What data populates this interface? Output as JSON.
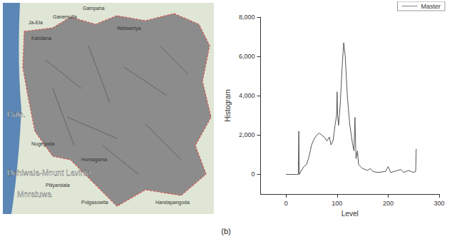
{
  "chart_data": {
    "type": "line",
    "legend": "top-right",
    "grid": false,
    "x_label": "Level",
    "y_label": "Histogram",
    "xlim": [
      -50,
      300
    ],
    "xticks": [
      0,
      100,
      200,
      300
    ],
    "ylim": [
      -1000,
      8000
    ],
    "yticks": [
      0,
      2000,
      4000,
      6000,
      8000
    ],
    "x": [
      0,
      10,
      20,
      24,
      25,
      26,
      30,
      35,
      40,
      45,
      50,
      55,
      60,
      65,
      70,
      75,
      80,
      85,
      88,
      92,
      96,
      99,
      100,
      101,
      103,
      106,
      110,
      113,
      116,
      120,
      125,
      130,
      133,
      135,
      137,
      140,
      142,
      150,
      160,
      165,
      170,
      180,
      195,
      200,
      205,
      225,
      230,
      240,
      250,
      254,
      255
    ],
    "series": [
      {
        "name": "Master",
        "color": "#555555",
        "line_style": "solid",
        "values": [
          0,
          0,
          0,
          0,
          2200,
          0,
          200,
          400,
          500,
          900,
          1500,
          1800,
          2000,
          2100,
          2000,
          1900,
          1700,
          1900,
          1500,
          1700,
          2500,
          3000,
          4200,
          3000,
          2500,
          3500,
          5500,
          6700,
          6000,
          4000,
          2500,
          1600,
          1200,
          2900,
          800,
          1200,
          500,
          300,
          200,
          300,
          150,
          100,
          150,
          400,
          100,
          250,
          100,
          200,
          100,
          150,
          1300
        ]
      }
    ]
  },
  "map": {
    "labels": [
      "Gampaha",
      "Ja-Ela",
      "Ganemulla",
      "Kandana",
      "Weliweriya",
      "Colo.",
      "Nugegoda",
      "Homagama",
      "Dehiwala-Mount Lavinia",
      "Piliyandala",
      "Moratuwa",
      "Polgasowita",
      "Handapangoda"
    ]
  },
  "caption": "(b)"
}
